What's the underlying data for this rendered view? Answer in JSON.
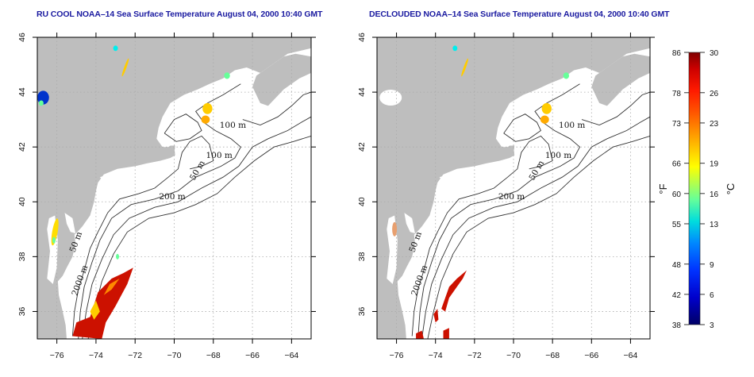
{
  "panels": [
    {
      "id": "left",
      "title": "RU COOL NOAA–14 Sea Surface Temperature August 04, 2000 10:40 GMT",
      "product": "RU COOL",
      "contour_labels": [
        "100 m",
        "100 m",
        "50 m",
        "200 m",
        "50 m",
        "2000 m"
      ],
      "clouds_removed": false
    },
    {
      "id": "right",
      "title": "DECLOUDED NOAA–14 Sea Surface Temperature August 04, 2000 10:40 GMT",
      "product": "DECLOUDED",
      "contour_labels": [
        "100 m",
        "100 m",
        "50 m",
        "200 m",
        "50 m",
        "2000 m"
      ],
      "clouds_removed": true
    }
  ],
  "axes": {
    "x_ticks": [
      "−76",
      "−74",
      "−72",
      "−70",
      "−68",
      "−66",
      "−64"
    ],
    "x_tick_values": [
      -76,
      -74,
      -72,
      -70,
      -68,
      -66,
      -64
    ],
    "y_ticks": [
      "36",
      "38",
      "40",
      "42",
      "44",
      "46"
    ],
    "y_tick_values": [
      36,
      38,
      40,
      42,
      44,
      46
    ],
    "lon_range": [
      -77,
      -63
    ],
    "lat_range": [
      35,
      46
    ],
    "grid": "dotted"
  },
  "colorbar": {
    "fahrenheit_label": "°F",
    "celsius_label": "°C",
    "fahrenheit_ticks": [
      "86",
      "78",
      "73",
      "66",
      "60",
      "55",
      "48",
      "42",
      "38"
    ],
    "celsius_ticks": [
      "30",
      "26",
      "23",
      "19",
      "16",
      "13",
      "9",
      "6",
      "3"
    ],
    "celsius_values": [
      30,
      26,
      23,
      19,
      16,
      13,
      9,
      6,
      3
    ],
    "range_c": [
      3,
      30
    ],
    "colors": [
      "#000066",
      "#0000cc",
      "#0044ff",
      "#0099ff",
      "#00eeee",
      "#66ff99",
      "#ffff00",
      "#ffaa00",
      "#ff5500",
      "#ff1a00",
      "#cc0000",
      "#800000"
    ]
  },
  "map_colors": {
    "land": "#bebebe",
    "ocean": "#ffffff",
    "contour": "#333333",
    "warm": "#cc1100",
    "title": "#1a1aa0"
  }
}
